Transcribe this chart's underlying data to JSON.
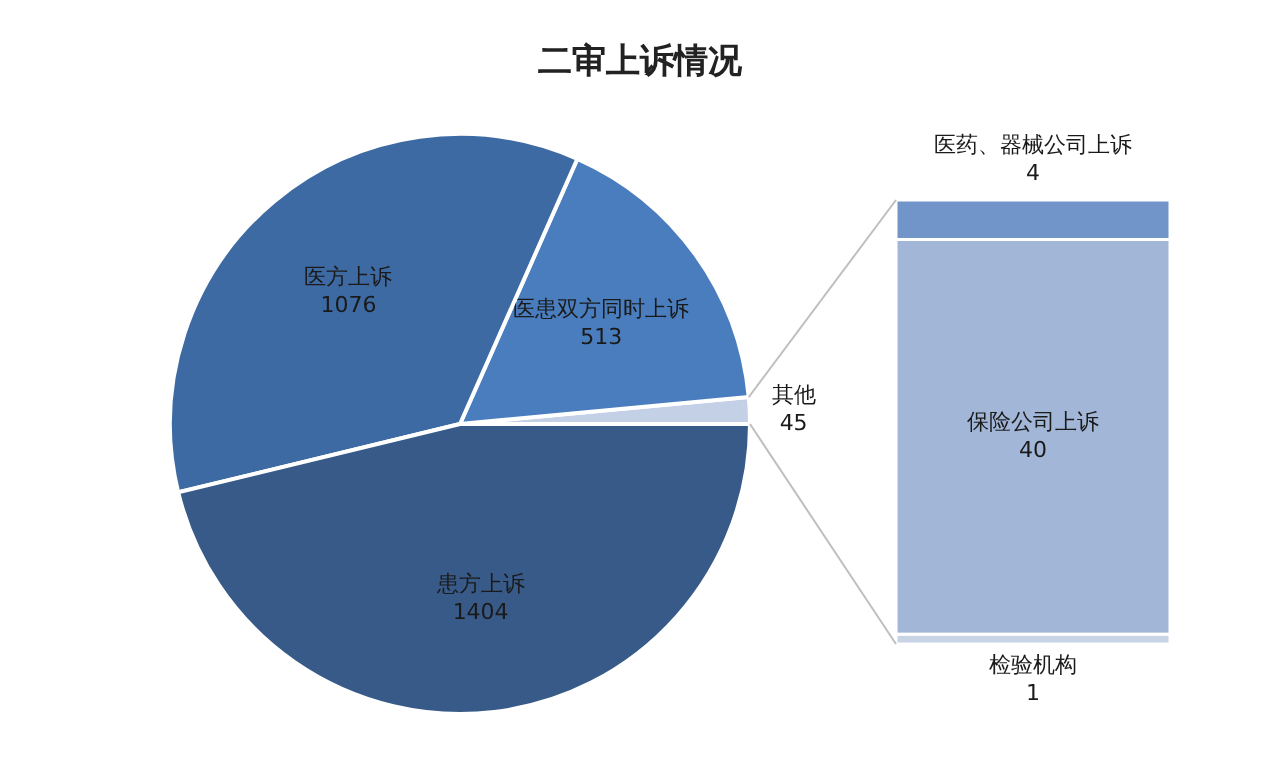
{
  "chart_data": [
    {
      "type": "pie",
      "title": "二审上诉情况",
      "categories": [
        "其他",
        "医患双方同时上诉",
        "医方上诉",
        "患方上诉"
      ],
      "values": [
        45,
        513,
        1076,
        1404
      ],
      "colors": [
        "#c3d0e6",
        "#4a7dbd",
        "#3e6aa3",
        "#385a88"
      ],
      "data_labels": true
    },
    {
      "type": "bar",
      "stacked": true,
      "categories": [
        null
      ],
      "data_labels": true,
      "series": [
        {
          "name": "检验机构",
          "color": "#c8d3e6",
          "values": [
            1
          ]
        },
        {
          "name": "保险公司上诉",
          "color": "#a2b6d7",
          "values": [
            40
          ]
        },
        {
          "name": "医药、器械公司上诉",
          "color": "#7195c8",
          "values": [
            4
          ]
        }
      ]
    }
  ]
}
